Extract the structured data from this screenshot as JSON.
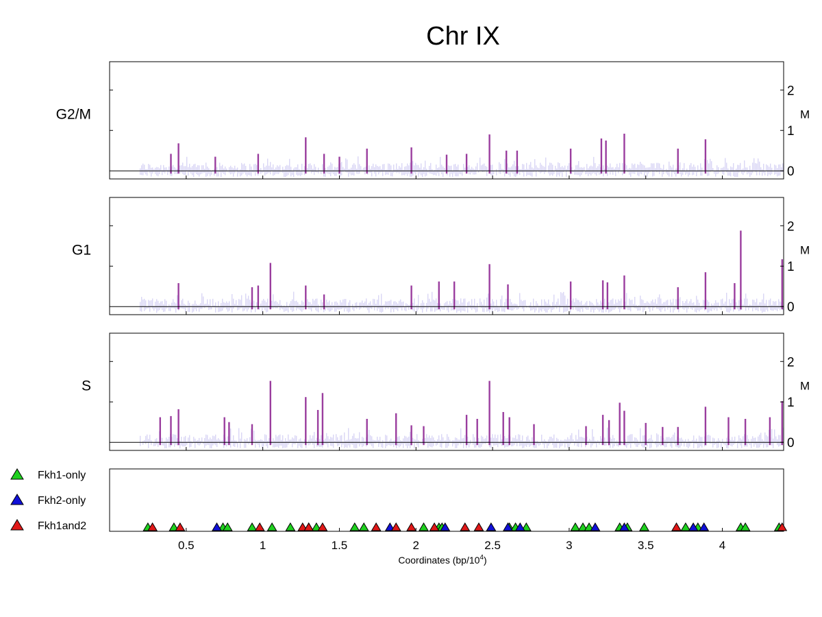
{
  "chart_data": {
    "type": "bar",
    "title": "Chr IX",
    "xlabel": "Coordinates (bp/10",
    "xlabel_exponent": "4",
    "xlabel_suffix": ")",
    "xlim": [
      0,
      4.4
    ],
    "x_ticks": [
      0.5,
      1,
      1.5,
      2,
      2.5,
      3,
      3.5,
      4
    ],
    "x_tick_labels": [
      "0.5",
      "1",
      "1.5",
      "2",
      "2.5",
      "3",
      "3.5",
      "4"
    ],
    "ylim": [
      -0.2,
      2.7
    ],
    "y_ticks": [
      0,
      1,
      2
    ],
    "y_tick_labels": [
      "0",
      "1",
      "2"
    ],
    "y_unit_label": "M",
    "background_color": "#d9d6f5",
    "peak_color": "#9a3d9e",
    "panels": [
      {
        "name": "G2/M",
        "peaks": [
          {
            "x": 0.4,
            "y": 0.42
          },
          {
            "x": 0.45,
            "y": 0.68
          },
          {
            "x": 0.69,
            "y": 0.35
          },
          {
            "x": 0.97,
            "y": 0.42
          },
          {
            "x": 1.28,
            "y": 0.83
          },
          {
            "x": 1.4,
            "y": 0.42
          },
          {
            "x": 1.5,
            "y": 0.35
          },
          {
            "x": 1.68,
            "y": 0.55
          },
          {
            "x": 1.97,
            "y": 0.58
          },
          {
            "x": 2.2,
            "y": 0.4
          },
          {
            "x": 2.33,
            "y": 0.42
          },
          {
            "x": 2.48,
            "y": 0.9
          },
          {
            "x": 2.59,
            "y": 0.5
          },
          {
            "x": 2.66,
            "y": 0.5
          },
          {
            "x": 3.01,
            "y": 0.55
          },
          {
            "x": 3.21,
            "y": 0.8
          },
          {
            "x": 3.24,
            "y": 0.75
          },
          {
            "x": 3.36,
            "y": 0.92
          },
          {
            "x": 3.71,
            "y": 0.55
          },
          {
            "x": 3.89,
            "y": 0.78
          }
        ]
      },
      {
        "name": "G1",
        "peaks": [
          {
            "x": 0.45,
            "y": 0.58
          },
          {
            "x": 0.93,
            "y": 0.48
          },
          {
            "x": 0.97,
            "y": 0.52
          },
          {
            "x": 1.05,
            "y": 1.08
          },
          {
            "x": 1.28,
            "y": 0.52
          },
          {
            "x": 1.4,
            "y": 0.3
          },
          {
            "x": 1.97,
            "y": 0.52
          },
          {
            "x": 2.15,
            "y": 0.62
          },
          {
            "x": 2.25,
            "y": 0.62
          },
          {
            "x": 2.48,
            "y": 1.05
          },
          {
            "x": 2.6,
            "y": 0.55
          },
          {
            "x": 3.01,
            "y": 0.62
          },
          {
            "x": 3.22,
            "y": 0.65
          },
          {
            "x": 3.25,
            "y": 0.6
          },
          {
            "x": 3.36,
            "y": 0.77
          },
          {
            "x": 3.71,
            "y": 0.48
          },
          {
            "x": 3.89,
            "y": 0.85
          },
          {
            "x": 4.08,
            "y": 0.58
          },
          {
            "x": 4.12,
            "y": 1.88
          },
          {
            "x": 4.39,
            "y": 1.17
          }
        ]
      },
      {
        "name": "S",
        "peaks": [
          {
            "x": 0.33,
            "y": 0.62
          },
          {
            "x": 0.4,
            "y": 0.65
          },
          {
            "x": 0.45,
            "y": 0.82
          },
          {
            "x": 0.75,
            "y": 0.62
          },
          {
            "x": 0.78,
            "y": 0.5
          },
          {
            "x": 0.93,
            "y": 0.45
          },
          {
            "x": 1.05,
            "y": 1.52
          },
          {
            "x": 1.28,
            "y": 1.12
          },
          {
            "x": 1.36,
            "y": 0.8
          },
          {
            "x": 1.39,
            "y": 1.22
          },
          {
            "x": 1.68,
            "y": 0.58
          },
          {
            "x": 1.87,
            "y": 0.72
          },
          {
            "x": 1.97,
            "y": 0.42
          },
          {
            "x": 2.05,
            "y": 0.4
          },
          {
            "x": 2.33,
            "y": 0.68
          },
          {
            "x": 2.4,
            "y": 0.58
          },
          {
            "x": 2.48,
            "y": 1.52
          },
          {
            "x": 2.57,
            "y": 0.75
          },
          {
            "x": 2.61,
            "y": 0.62
          },
          {
            "x": 2.77,
            "y": 0.45
          },
          {
            "x": 3.11,
            "y": 0.4
          },
          {
            "x": 3.22,
            "y": 0.68
          },
          {
            "x": 3.26,
            "y": 0.55
          },
          {
            "x": 3.33,
            "y": 0.98
          },
          {
            "x": 3.36,
            "y": 0.78
          },
          {
            "x": 3.5,
            "y": 0.48
          },
          {
            "x": 3.61,
            "y": 0.38
          },
          {
            "x": 3.71,
            "y": 0.38
          },
          {
            "x": 3.89,
            "y": 0.88
          },
          {
            "x": 4.04,
            "y": 0.62
          },
          {
            "x": 4.15,
            "y": 0.58
          },
          {
            "x": 4.31,
            "y": 0.62
          },
          {
            "x": 4.39,
            "y": 1.02
          }
        ]
      }
    ],
    "motif_series": [
      {
        "name": "Fkh1-only",
        "color": "#1fd01f",
        "x": [
          0.25,
          0.42,
          0.74,
          0.77,
          0.93,
          1.06,
          1.18,
          1.3,
          1.35,
          1.6,
          1.66,
          2.05,
          2.15,
          2.17,
          2.61,
          2.65,
          2.72,
          3.04,
          3.09,
          3.13,
          3.33,
          3.38,
          3.49,
          3.76,
          3.84,
          4.12,
          4.15,
          4.37
        ]
      },
      {
        "name": "Fkh2-only",
        "color": "#1010d8",
        "x": [
          0.7,
          1.83,
          2.19,
          2.49,
          2.6,
          2.68,
          3.17,
          3.36,
          3.81,
          3.88
        ]
      },
      {
        "name": "Fkh1and2",
        "color": "#e01818",
        "x": [
          0.28,
          0.46,
          0.98,
          1.26,
          1.3,
          1.39,
          1.74,
          1.87,
          1.97,
          2.12,
          2.32,
          2.41,
          3.7,
          4.39
        ]
      }
    ],
    "legend_position": "left"
  }
}
